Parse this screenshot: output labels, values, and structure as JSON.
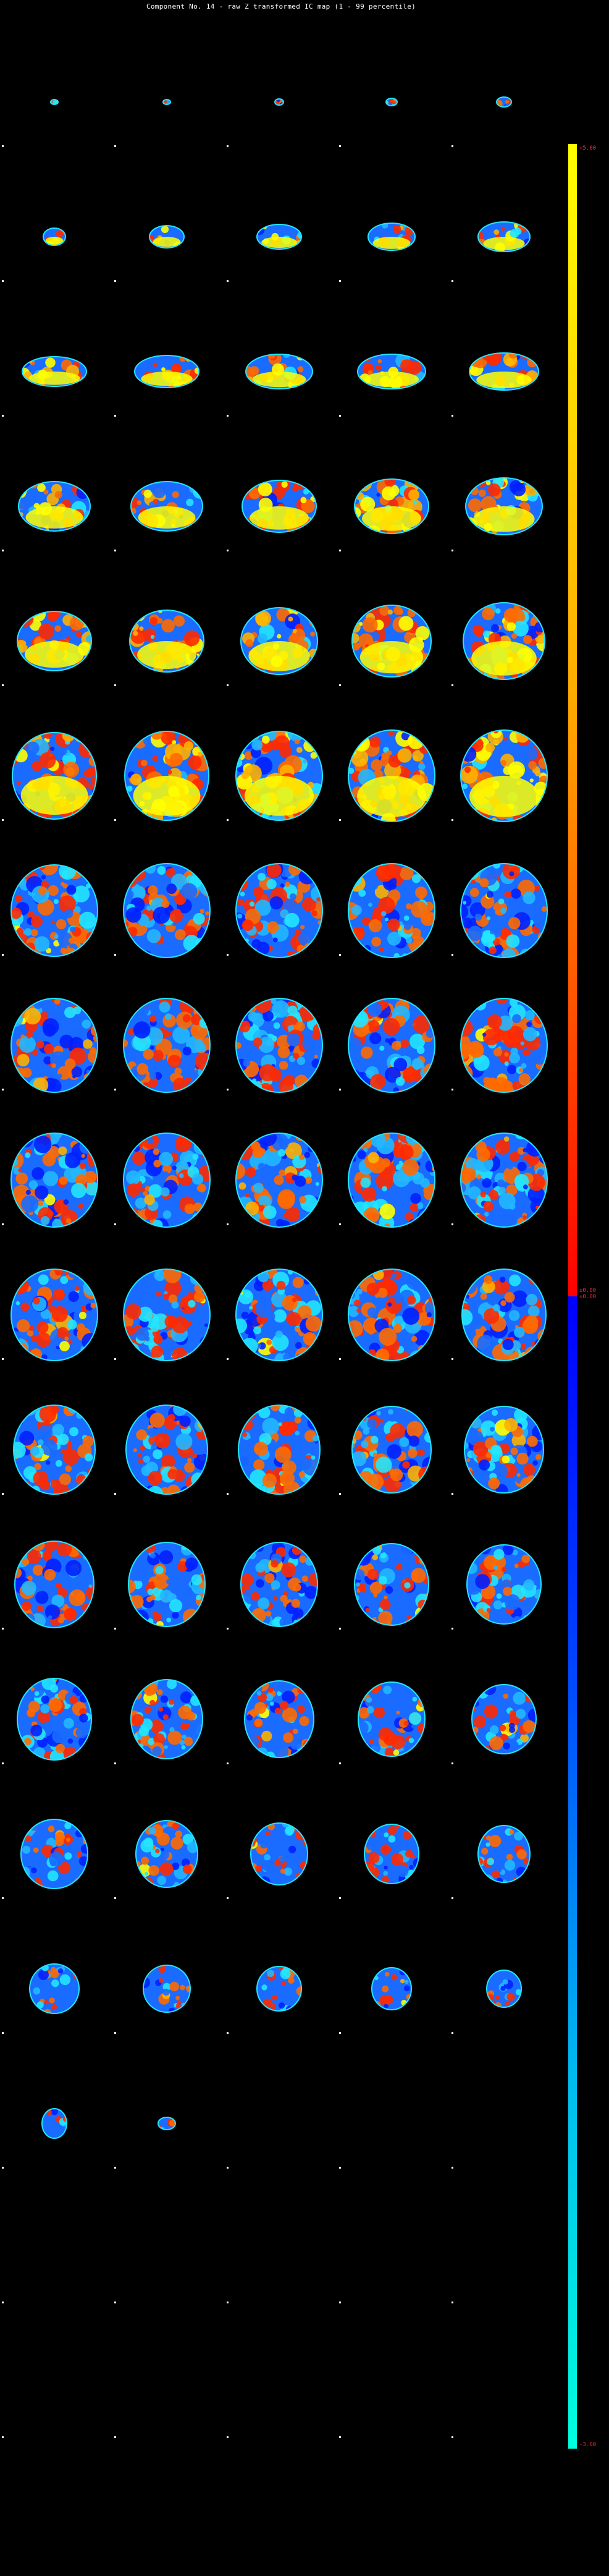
{
  "title": "Component No. 14 - raw Z transformed IC map (1 - 99 percentile)",
  "colorbar": {
    "max_label": "+5.00",
    "mid_label": "±0.00\n±0.00",
    "min_label": "-3.00",
    "colors": [
      "#ffff00",
      "#ffaa00",
      "#ff5500",
      "#ff0000",
      "#0000ff",
      "#0044ff",
      "#00bbee",
      "#00ffdd"
    ]
  },
  "montage": {
    "rows": 18,
    "columns": 5,
    "slices_with_brain": 77,
    "palette": {
      "positive": [
        "#ff2a00",
        "#ff6a00",
        "#ffb000",
        "#ffff00"
      ],
      "negative": [
        "#0020ff",
        "#1a6bff",
        "#22b8ff",
        "#22e6ff"
      ]
    }
  }
}
